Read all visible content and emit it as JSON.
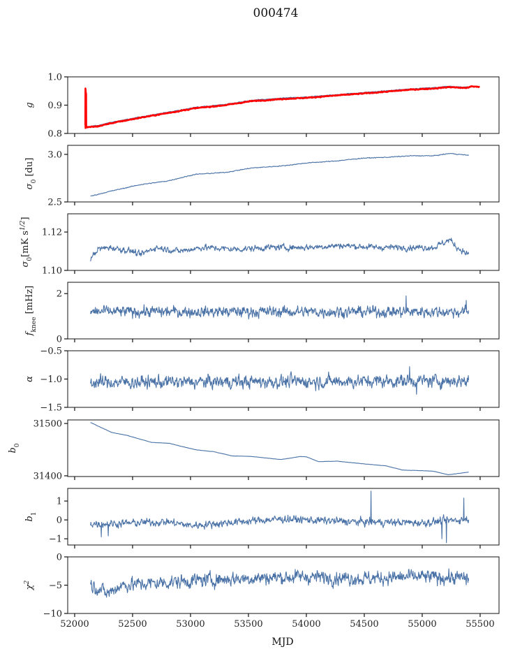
{
  "chart_data": {
    "type": "line",
    "title": "000474",
    "xlabel": "MJD",
    "xlim": [
      51940,
      55663
    ],
    "xticks": [
      52000,
      52500,
      53000,
      53500,
      54000,
      54500,
      55000,
      55500
    ],
    "xtick_labels": [
      "52000",
      "52500",
      "53000",
      "53500",
      "54000",
      "54500",
      "55000",
      "55500"
    ],
    "colors": {
      "blue": "#4a72a6",
      "red": "#ff0000"
    },
    "panels": [
      {
        "ylabel": {
          "main": "g",
          "sub": "",
          "unit": "",
          "unit_sup": "",
          "unit_end": ""
        },
        "ylim": [
          0.8,
          1.0
        ],
        "yticks": [
          0.8,
          0.9,
          1.0
        ],
        "ytick_labels": [
          "0.8",
          "0.9",
          "1.0"
        ],
        "series": [
          {
            "name": "g-fit",
            "color": "blue",
            "noise": 0.001,
            "x": [
              52137,
              52200,
              52300,
              52558,
              52800,
              53040,
              53300,
              53522,
              53800,
              54004,
              54250,
              54486,
              54700,
              54908,
              55100,
              55239,
              55350,
              55402
            ],
            "y": [
              0.826,
              0.828,
              0.838,
              0.858,
              0.875,
              0.892,
              0.903,
              0.917,
              0.925,
              0.929,
              0.937,
              0.944,
              0.951,
              0.958,
              0.962,
              0.967,
              0.964,
              0.965
            ]
          },
          {
            "name": "g-measured",
            "color": "red",
            "noise": 0.0012,
            "x": [
              52092,
              52093,
              52094,
              52095,
              52096,
              52097,
              52098,
              52099,
              52100,
              52104,
              52137,
              52200,
              52300,
              52558,
              52800,
              53040,
              53300,
              53522,
              53800,
              54004,
              54250,
              54486,
              54700,
              54908,
              55100,
              55239,
              55350,
              55402,
              55420,
              55498
            ],
            "y": [
              0.83,
              0.96,
              0.82,
              0.955,
              0.82,
              0.945,
              0.825,
              0.94,
              0.822,
              0.822,
              0.823,
              0.825,
              0.835,
              0.855,
              0.872,
              0.889,
              0.9,
              0.914,
              0.922,
              0.926,
              0.934,
              0.941,
              0.948,
              0.955,
              0.959,
              0.964,
              0.961,
              0.962,
              0.966,
              0.965
            ]
          }
        ]
      },
      {
        "ylabel": {
          "main": "σ",
          "sub": "0",
          "unit": " [du]",
          "unit_sup": "",
          "unit_end": ""
        },
        "ylim": [
          2.5,
          3.095
        ],
        "yticks": [
          2.5,
          3.0
        ],
        "ytick_labels": [
          "2.5",
          "3.0"
        ],
        "series": [
          {
            "name": "sigma0-du",
            "color": "blue",
            "noise": 0.003,
            "x": [
              52137,
              52300,
              52558,
              52800,
              53040,
              53300,
              53522,
              53800,
              54004,
              54250,
              54486,
              54700,
              54908,
              55100,
              55239,
              55402
            ],
            "y": [
              2.56,
              2.61,
              2.68,
              2.72,
              2.79,
              2.81,
              2.856,
              2.88,
              2.91,
              2.93,
              2.96,
              2.97,
              2.985,
              2.985,
              3.01,
              2.99
            ]
          }
        ]
      },
      {
        "ylabel": {
          "main": "σ",
          "sub": "0",
          "unit": "[mK s",
          "unit_sup": "1/2",
          "unit_end": "]"
        },
        "ylim": [
          1.1,
          1.1295
        ],
        "yticks": [
          1.1,
          1.12
        ],
        "ytick_labels": [
          "1.10",
          "1.12"
        ],
        "series": [
          {
            "name": "sigma0-mk",
            "color": "blue",
            "noise": 0.0011,
            "x": [
              52137,
              52200,
              52300,
              52500,
              52558,
              52700,
              52900,
              53100,
              53400,
              53700,
              54000,
              54300,
              54600,
              54900,
              55100,
              55239,
              55300,
              55402
            ],
            "y": [
              1.106,
              1.111,
              1.112,
              1.11,
              1.108,
              1.112,
              1.11,
              1.112,
              1.111,
              1.112,
              1.112,
              1.113,
              1.112,
              1.112,
              1.112,
              1.116,
              1.112,
              1.108
            ]
          }
        ]
      },
      {
        "ylabel": {
          "main": "f",
          "sub": "knee",
          "unit": " [mHz]",
          "unit_sup": "",
          "unit_end": ""
        },
        "ylim": [
          0,
          2.5
        ],
        "yticks": [
          0,
          2
        ],
        "ytick_labels": [
          "0",
          "2"
        ],
        "series": [
          {
            "name": "fknee",
            "color": "blue",
            "noise": 0.17,
            "x": [
              52137,
              55402
            ],
            "y": [
              1.2,
              1.2
            ],
            "spikes": [
              [
                54860,
                1.9
              ],
              [
                55380,
                1.7
              ]
            ]
          }
        ]
      },
      {
        "ylabel": {
          "main": "α",
          "sub": "",
          "unit": "",
          "unit_sup": "",
          "unit_end": ""
        },
        "ylim": [
          -1.5,
          -0.5
        ],
        "yticks": [
          -1.5,
          -1.0,
          -0.5
        ],
        "ytick_labels": [
          "−1.5",
          "−1.0",
          "−0.5"
        ],
        "series": [
          {
            "name": "alpha",
            "color": "blue",
            "noise": 0.08,
            "x": [
              52137,
              55402
            ],
            "y": [
              -1.06,
              -1.03
            ],
            "spikes": [
              [
                54890,
                -0.78
              ],
              [
                54950,
                -1.27
              ]
            ]
          }
        ]
      },
      {
        "ylabel": {
          "main": "b",
          "sub": "0",
          "unit": "",
          "unit_sup": "",
          "unit_end": ""
        },
        "ylim": [
          31398.6,
          31506.8
        ],
        "yticks": [
          31400,
          31500
        ],
        "ytick_labels": [
          "31400",
          "31500"
        ],
        "series": [
          {
            "name": "b0",
            "color": "blue",
            "noise": 0.2,
            "x": [
              52137,
              52318,
              52457,
              52660,
              52818,
              53040,
              53202,
              53361,
              53522,
              53780,
              53950,
              54004,
              54105,
              54265,
              54487,
              54686,
              54832,
              55089,
              55228,
              55402
            ],
            "y": [
              31502,
              31483,
              31477,
              31464,
              31462,
              31450,
              31446,
              31438,
              31437,
              31431,
              31437,
              31436,
              31427,
              31428,
              31423,
              31419,
              31411,
              31409,
              31402,
              31407
            ]
          }
        ]
      },
      {
        "ylabel": {
          "main": "b",
          "sub": "1",
          "unit": "",
          "unit_sup": "",
          "unit_end": ""
        },
        "ylim": [
          -1.33,
          1.67
        ],
        "yticks": [
          -1,
          0,
          1
        ],
        "ytick_labels": [
          "−1",
          "0",
          "1"
        ],
        "series": [
          {
            "name": "b1",
            "color": "blue",
            "noise": 0.14,
            "x": [
              52137,
              52300,
              52800,
              53000,
              53522,
              53800,
              54400,
              55000,
              55402
            ],
            "y": [
              -0.2,
              -0.2,
              -0.1,
              -0.3,
              -0.05,
              0.05,
              -0.1,
              -0.15,
              0.05
            ],
            "spikes": [
              [
                52230,
                -0.9
              ],
              [
                52290,
                -0.85
              ],
              [
                54557,
                1.53
              ],
              [
                55170,
                -1.0
              ],
              [
                55209,
                -1.21
              ],
              [
                55360,
                1.16
              ]
            ]
          }
        ]
      },
      {
        "ylabel": {
          "main": "χ",
          "sub": "",
          "unit": "",
          "unit_sup": "2",
          "unit_end": ""
        },
        "ylim": [
          -10,
          0
        ],
        "yticks": [
          -10,
          -5,
          0
        ],
        "ytick_labels": [
          "−10",
          "−5",
          "0"
        ],
        "series": [
          {
            "name": "chi2",
            "color": "blue",
            "noise": 0.85,
            "x": [
              52137,
              52200,
              52280,
              52400,
              52800,
              53200,
              53600,
              54000,
              54500,
              55000,
              55402
            ],
            "y": [
              -5,
              -5.5,
              -6.5,
              -5,
              -4.5,
              -4,
              -3.7,
              -3.5,
              -3.8,
              -3.5,
              -3.8
            ]
          }
        ]
      }
    ]
  }
}
